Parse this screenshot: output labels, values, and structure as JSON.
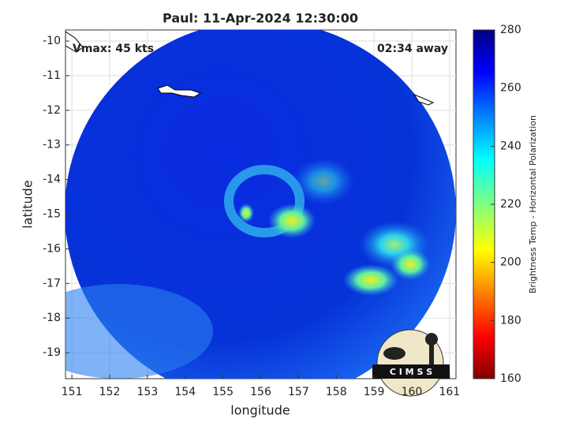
{
  "chart_data": {
    "type": "map",
    "title": "Paul: 11-Apr-2024 12:30:00",
    "annotations": [
      "Vmax: 45 kts",
      "02:34 away"
    ],
    "xlabel": "longitude",
    "ylabel": "latitude",
    "xlim": [
      150.83,
      161.17
    ],
    "xticks": [
      151,
      152,
      153,
      154,
      155,
      156,
      157,
      158,
      159,
      160,
      161
    ],
    "ylim": [
      -19.75,
      -9.68
    ],
    "yticks": [
      -10,
      -11,
      -12,
      -13,
      -14,
      -15,
      -16,
      -17,
      -18,
      -19
    ],
    "grid": true,
    "colorbar": {
      "label": "Brightness Temp - Horizontal Polarization",
      "lim": [
        160,
        280
      ],
      "ticks": [
        160,
        180,
        200,
        220,
        240,
        260,
        280
      ]
    }
  },
  "logo": "C I M S S"
}
